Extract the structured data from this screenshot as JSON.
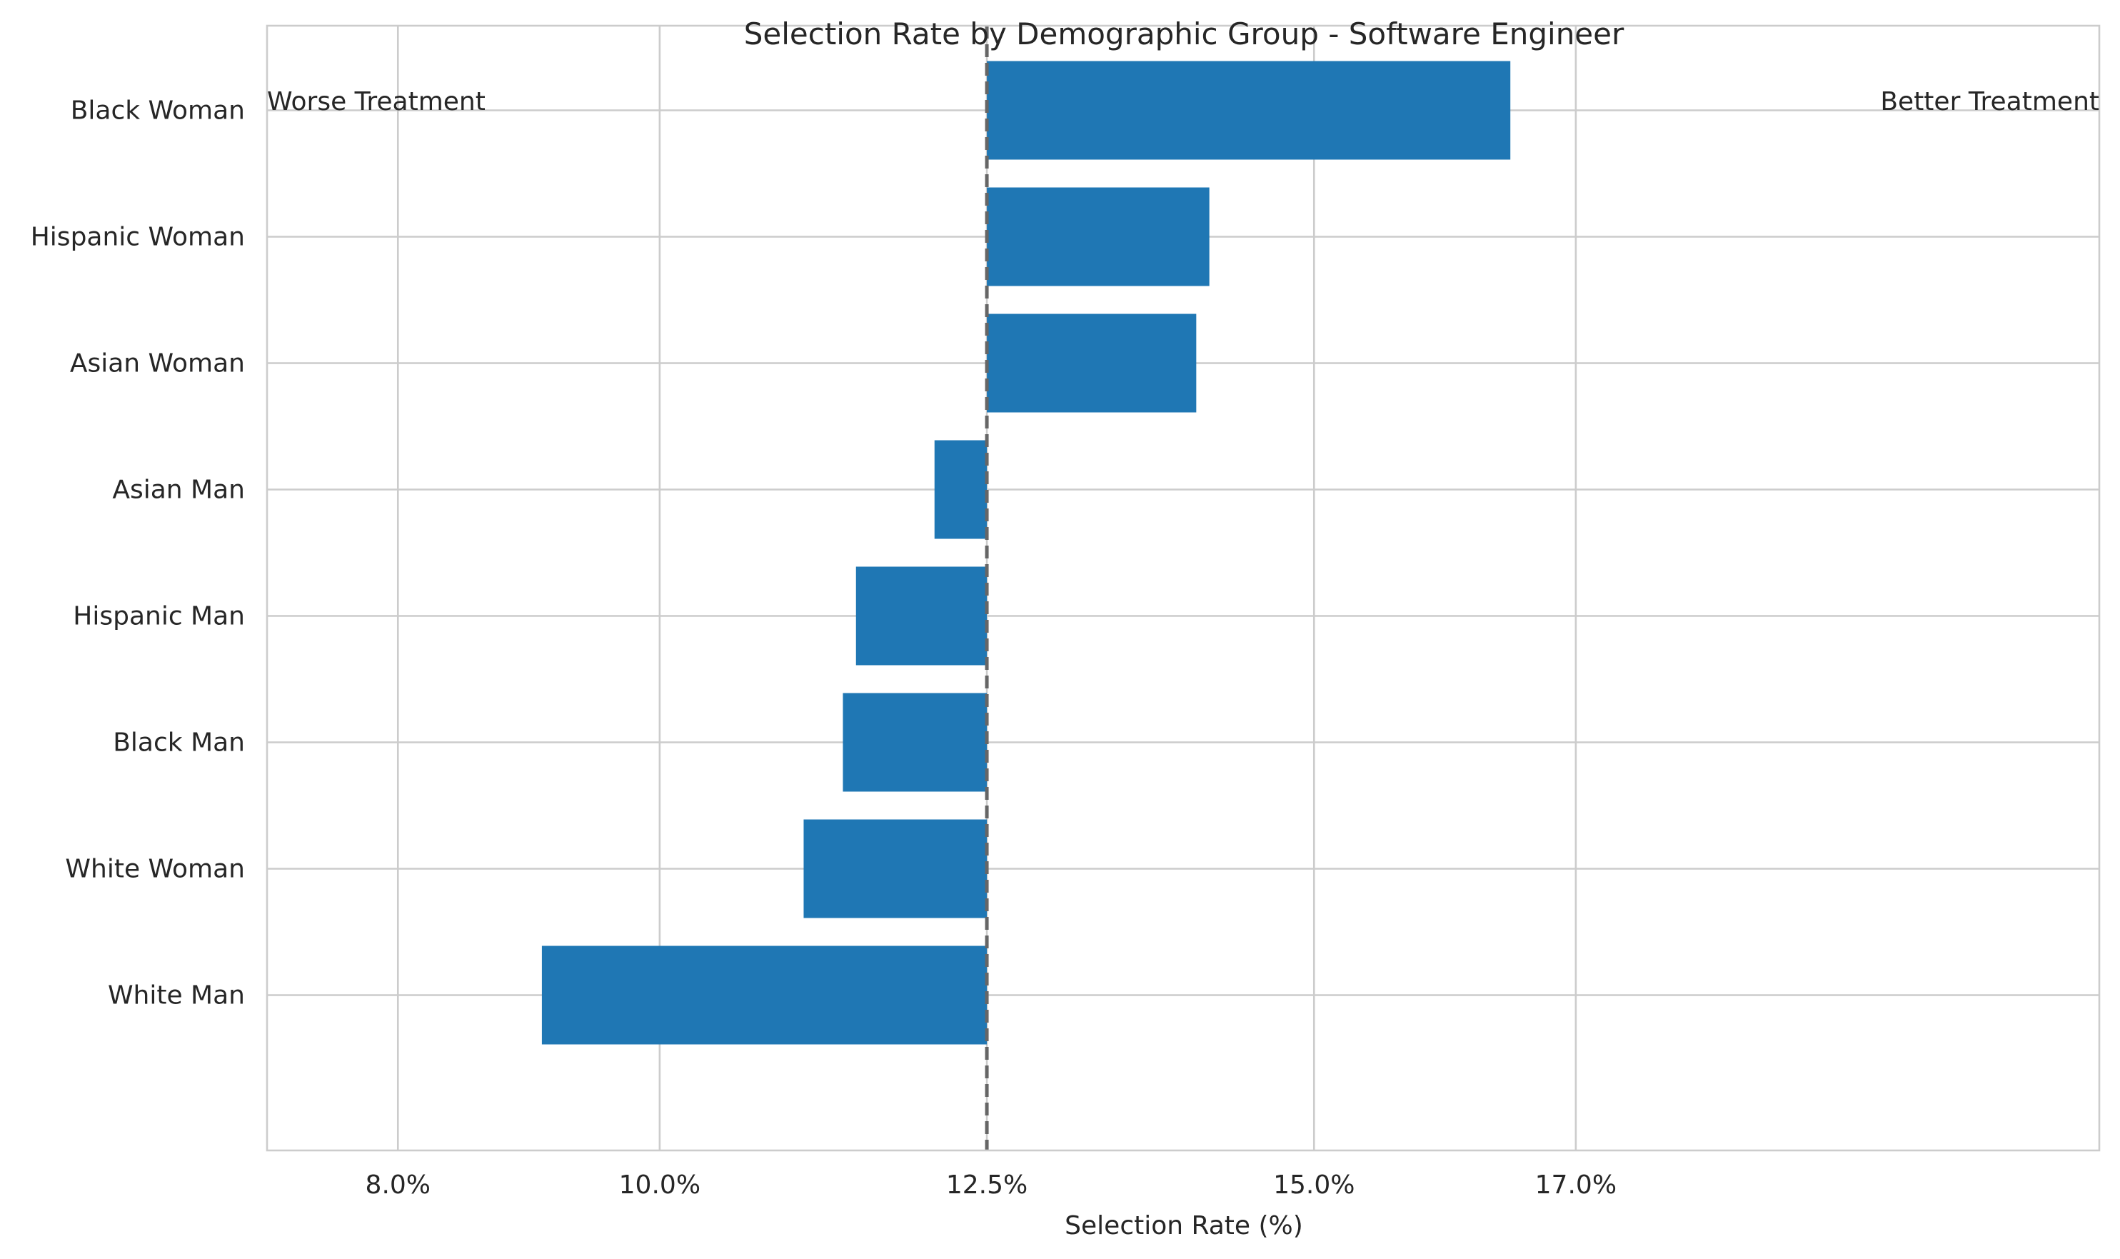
{
  "chart_data": {
    "type": "bar",
    "orientation": "horizontal",
    "title": "Selection Rate by Demographic Group - Software Engineer",
    "xlabel": "Selection Rate (%)",
    "ylabel": "",
    "categories": [
      "Black Woman",
      "Hispanic Woman",
      "Asian Woman",
      "Asian Man",
      "Hispanic Man",
      "Black Man",
      "White Woman",
      "White Man"
    ],
    "values": [
      16.5,
      14.2,
      14.1,
      12.1,
      11.5,
      11.4,
      11.1,
      9.1
    ],
    "baseline": 12.5,
    "xlim": [
      7.0,
      21.0
    ],
    "xticks": [
      8.0,
      10.0,
      12.5,
      15.0,
      17.0
    ],
    "xtick_labels": [
      "8.0%",
      "10.0%",
      "12.5%",
      "15.0%",
      "17.0%"
    ],
    "grid": true,
    "bar_color": "#1f77b4",
    "baseline_color": "#666666",
    "annotations": {
      "left": "Worse Treatment",
      "right": "Better Treatment"
    }
  }
}
